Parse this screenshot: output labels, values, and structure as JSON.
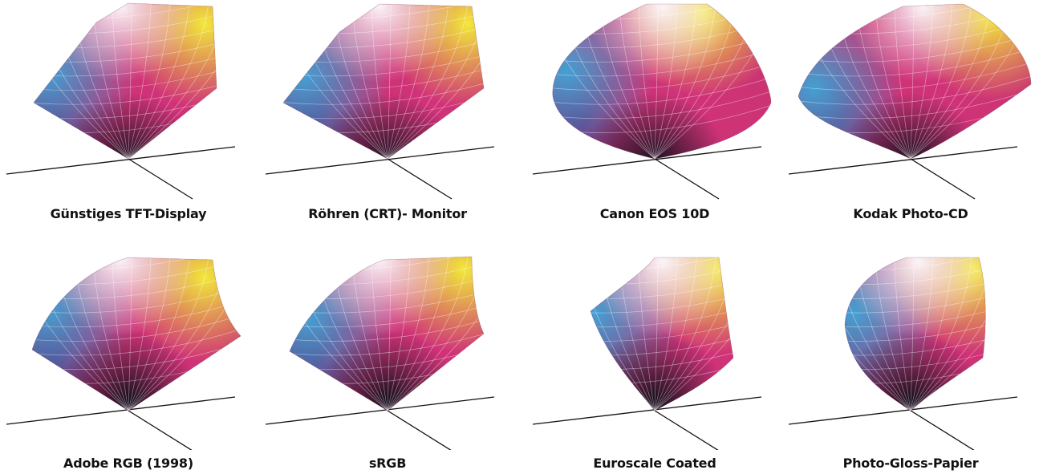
{
  "figure": {
    "items": [
      {
        "label": "Günstiges TFT-Display",
        "shape": "tft"
      },
      {
        "label": "Röhren (CRT)- Monitor",
        "shape": "crt"
      },
      {
        "label": "Canon EOS 10D",
        "shape": "canon"
      },
      {
        "label": "Kodak Photo-CD",
        "shape": "kodak"
      },
      {
        "label": "Adobe RGB (1998)",
        "shape": "adobe"
      },
      {
        "label": "sRGB",
        "shape": "srgb"
      },
      {
        "label": "Euroscale Coated",
        "shape": "euro"
      },
      {
        "label": "Photo-Gloss-Papier",
        "shape": "photo"
      }
    ],
    "colors": {
      "yellow": "#f2e83a",
      "cyan": "#3fa6d8",
      "blue": "#2a2a7a",
      "magenta": "#d2327a",
      "white": "#fbf4f8",
      "black": "#15101c",
      "axis": "#111111",
      "mesh": "#ffffff"
    }
  }
}
